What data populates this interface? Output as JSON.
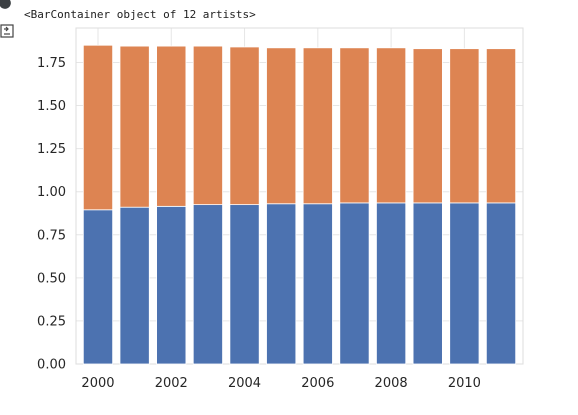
{
  "output": {
    "repr_text": "<BarContainer object of 12 artists>"
  },
  "icons": {
    "run_indicator": "circle-icon",
    "output_toggle": "output-toggle-icon"
  },
  "colors": {
    "series_bottom": "#4c72b0",
    "series_top": "#dd8452",
    "grid": "#e6e6e6",
    "axis_frame": "#dddddd",
    "text": "#262626"
  },
  "chart_data": {
    "type": "bar",
    "stacked": true,
    "x": [
      2000,
      2001,
      2002,
      2003,
      2004,
      2005,
      2006,
      2007,
      2008,
      2009,
      2010,
      2011
    ],
    "series": [
      {
        "values": [
          0.895,
          0.91,
          0.915,
          0.925,
          0.925,
          0.93,
          0.93,
          0.935,
          0.935,
          0.935,
          0.935,
          0.935
        ],
        "color": "#4c72b0"
      },
      {
        "values": [
          0.955,
          0.935,
          0.93,
          0.92,
          0.915,
          0.905,
          0.905,
          0.9,
          0.9,
          0.895,
          0.895,
          0.895
        ],
        "color": "#dd8452"
      }
    ],
    "x_ticks": [
      2000,
      2002,
      2004,
      2006,
      2008,
      2010
    ],
    "x_tick_labels": [
      "2000",
      "2002",
      "2004",
      "2006",
      "2008",
      "2010"
    ],
    "y_ticks": [
      0.0,
      0.25,
      0.5,
      0.75,
      1.0,
      1.25,
      1.5,
      1.75
    ],
    "y_tick_labels": [
      "0.00",
      "0.25",
      "0.50",
      "0.75",
      "1.00",
      "1.25",
      "1.50",
      "1.75"
    ],
    "xlim": [
      1999.4,
      2011.6
    ],
    "ylim": [
      0,
      1.95
    ],
    "grid": true,
    "title": "",
    "xlabel": "",
    "ylabel": ""
  }
}
